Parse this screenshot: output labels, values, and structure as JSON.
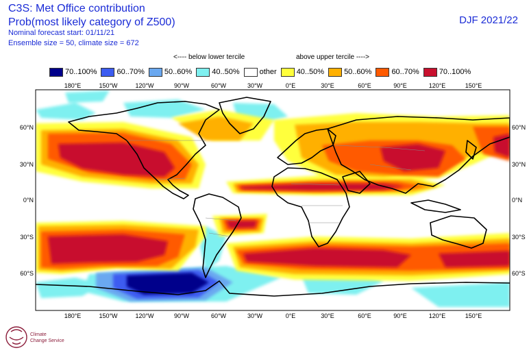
{
  "header": {
    "title": "C3S: Met Office contribution",
    "subtitle": "Prob(most likely category of Z500)",
    "forecast_start": "Nominal forecast start: 01/11/21",
    "ensemble": "Ensemble size = 50, climate size = 672",
    "season": "DJF 2021/22"
  },
  "tercile_labels": {
    "below": "<---- below lower tercile",
    "above": "above upper tercile ---->"
  },
  "legend": [
    {
      "label": "70..100%",
      "color": "#00008b"
    },
    {
      "label": "60..70%",
      "color": "#3c5cf0"
    },
    {
      "label": "50..60%",
      "color": "#6aa8f0"
    },
    {
      "label": "40..50%",
      "color": "#7ef0f0"
    },
    {
      "label": "other",
      "color": "#ffffff"
    },
    {
      "label": "40..50%",
      "color": "#ffff3c"
    },
    {
      "label": "50..60%",
      "color": "#ffb000"
    },
    {
      "label": "60..70%",
      "color": "#ff5a00"
    },
    {
      "label": "70..100%",
      "color": "#c8102e"
    }
  ],
  "axes": {
    "lon_labels": [
      "180°E",
      "150°W",
      "120°W",
      "90°W",
      "60°W",
      "30°W",
      "0°E",
      "30°E",
      "60°E",
      "90°E",
      "120°E",
      "150°E"
    ],
    "lat_labels": [
      "60°N",
      "30°N",
      "0°N",
      "30°S",
      "60°S"
    ]
  },
  "logo_text": {
    "line1": "Climate",
    "line2": "Change Service"
  }
}
